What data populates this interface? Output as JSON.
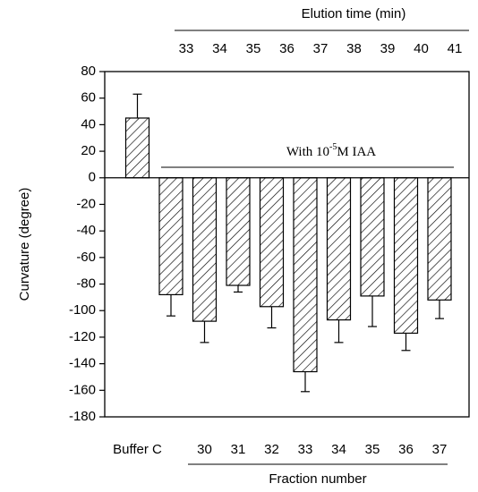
{
  "chart_data": {
    "type": "bar",
    "y_title": "Curvature (degree)",
    "x_title": "Fraction number",
    "top_title": "Elution time (min)",
    "categories": [
      "Buffer C",
      null,
      "30",
      "31",
      "32",
      "33",
      "34",
      "35",
      "36",
      "37"
    ],
    "top_categories": [
      33,
      34,
      35,
      36,
      37,
      38,
      39,
      40,
      41
    ],
    "values": [
      45,
      -88,
      -108,
      -81,
      -97,
      -146,
      -107,
      -89,
      -117,
      -92
    ],
    "errors": [
      18,
      16,
      16,
      5,
      16,
      15,
      17,
      23,
      13,
      14
    ],
    "annotation": {
      "before": "With 10",
      "superscript": "-5",
      "after": "M IAA"
    },
    "color": "#000000",
    "ylim": [
      -180,
      80
    ],
    "yticks": [
      -180,
      -160,
      -140,
      -120,
      -100,
      -80,
      -60,
      -40,
      -20,
      0,
      20,
      40,
      60,
      80
    ],
    "grid": false
  }
}
